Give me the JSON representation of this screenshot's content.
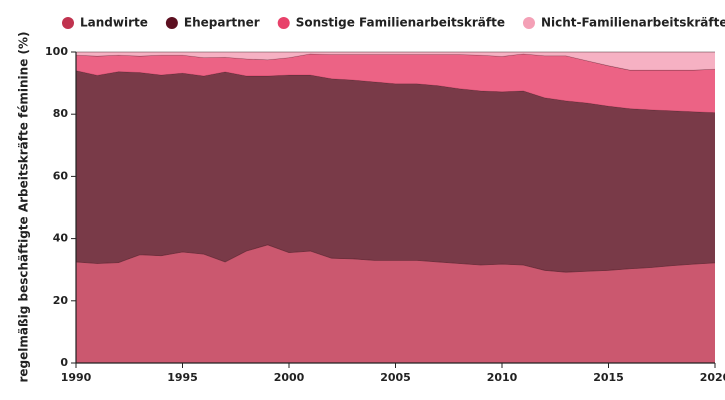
{
  "chart_data": {
    "type": "stacked-area",
    "y_label": "regelmäßig beschäftigte Arbeitskräfte féminine (%)",
    "x": [
      1990,
      1991,
      1992,
      1993,
      1994,
      1995,
      1996,
      1997,
      1998,
      1999,
      2000,
      2001,
      2002,
      2003,
      2004,
      2005,
      2006,
      2007,
      2008,
      2009,
      2010,
      2011,
      2012,
      2013,
      2014,
      2015,
      2016,
      2017,
      2018,
      2019,
      2020
    ],
    "xlim": [
      1990,
      2020
    ],
    "xticks": [
      1990,
      1995,
      2000,
      2005,
      2010,
      2015,
      2020
    ],
    "ylim": [
      0,
      100
    ],
    "yticks": [
      0,
      20,
      40,
      60,
      80,
      100
    ],
    "series": [
      {
        "name": "Landwirte",
        "color": "#c0334f",
        "values": [
          32.5,
          32,
          32.3,
          34.8,
          34.5,
          35.7,
          35,
          32.5,
          36,
          38,
          35.5,
          36,
          33.7,
          33.5,
          33,
          33,
          33,
          32.5,
          32,
          31.5,
          31.8,
          31.5,
          29.8,
          29.2,
          29.5,
          29.8,
          30.3,
          30.7,
          31.3,
          31.8,
          32.2
        ]
      },
      {
        "name": "Ehepartner",
        "color": "#5c0f20",
        "values": [
          61.5,
          60.5,
          61.4,
          58.6,
          58.1,
          57.5,
          57.3,
          61.1,
          56.3,
          54.3,
          57.1,
          56.6,
          57.7,
          57.5,
          57.4,
          56.8,
          56.8,
          56.7,
          56.2,
          56,
          55.4,
          56,
          55.5,
          55.1,
          54.1,
          52.8,
          51.5,
          50.7,
          49.8,
          49,
          48.3
        ]
      },
      {
        "name": "Sonstige Familienarbeitskräfte",
        "color": "#e8416a",
        "values": [
          5,
          6.2,
          5.3,
          5.3,
          6.4,
          5.8,
          5.9,
          4.7,
          5.5,
          5.2,
          5.6,
          6.8,
          7.8,
          8.2,
          8.8,
          9.4,
          9.4,
          10,
          11,
          11.5,
          11.4,
          11.9,
          13.5,
          14.5,
          13.6,
          13,
          12.4,
          12.8,
          13.1,
          13.4,
          14
        ]
      },
      {
        "name": "Nicht-Familienarbeitskräfte",
        "color": "#f4a0b6",
        "values": [
          1,
          1.3,
          1,
          1.3,
          1,
          1,
          1.8,
          1.7,
          2.2,
          2.5,
          1.8,
          0.6,
          0.8,
          0.8,
          0.8,
          0.8,
          0.8,
          0.8,
          0.8,
          1,
          1.4,
          0.6,
          1.2,
          1.2,
          2.8,
          4.4,
          5.8,
          5.8,
          5.8,
          5.8,
          5.5
        ]
      }
    ]
  }
}
